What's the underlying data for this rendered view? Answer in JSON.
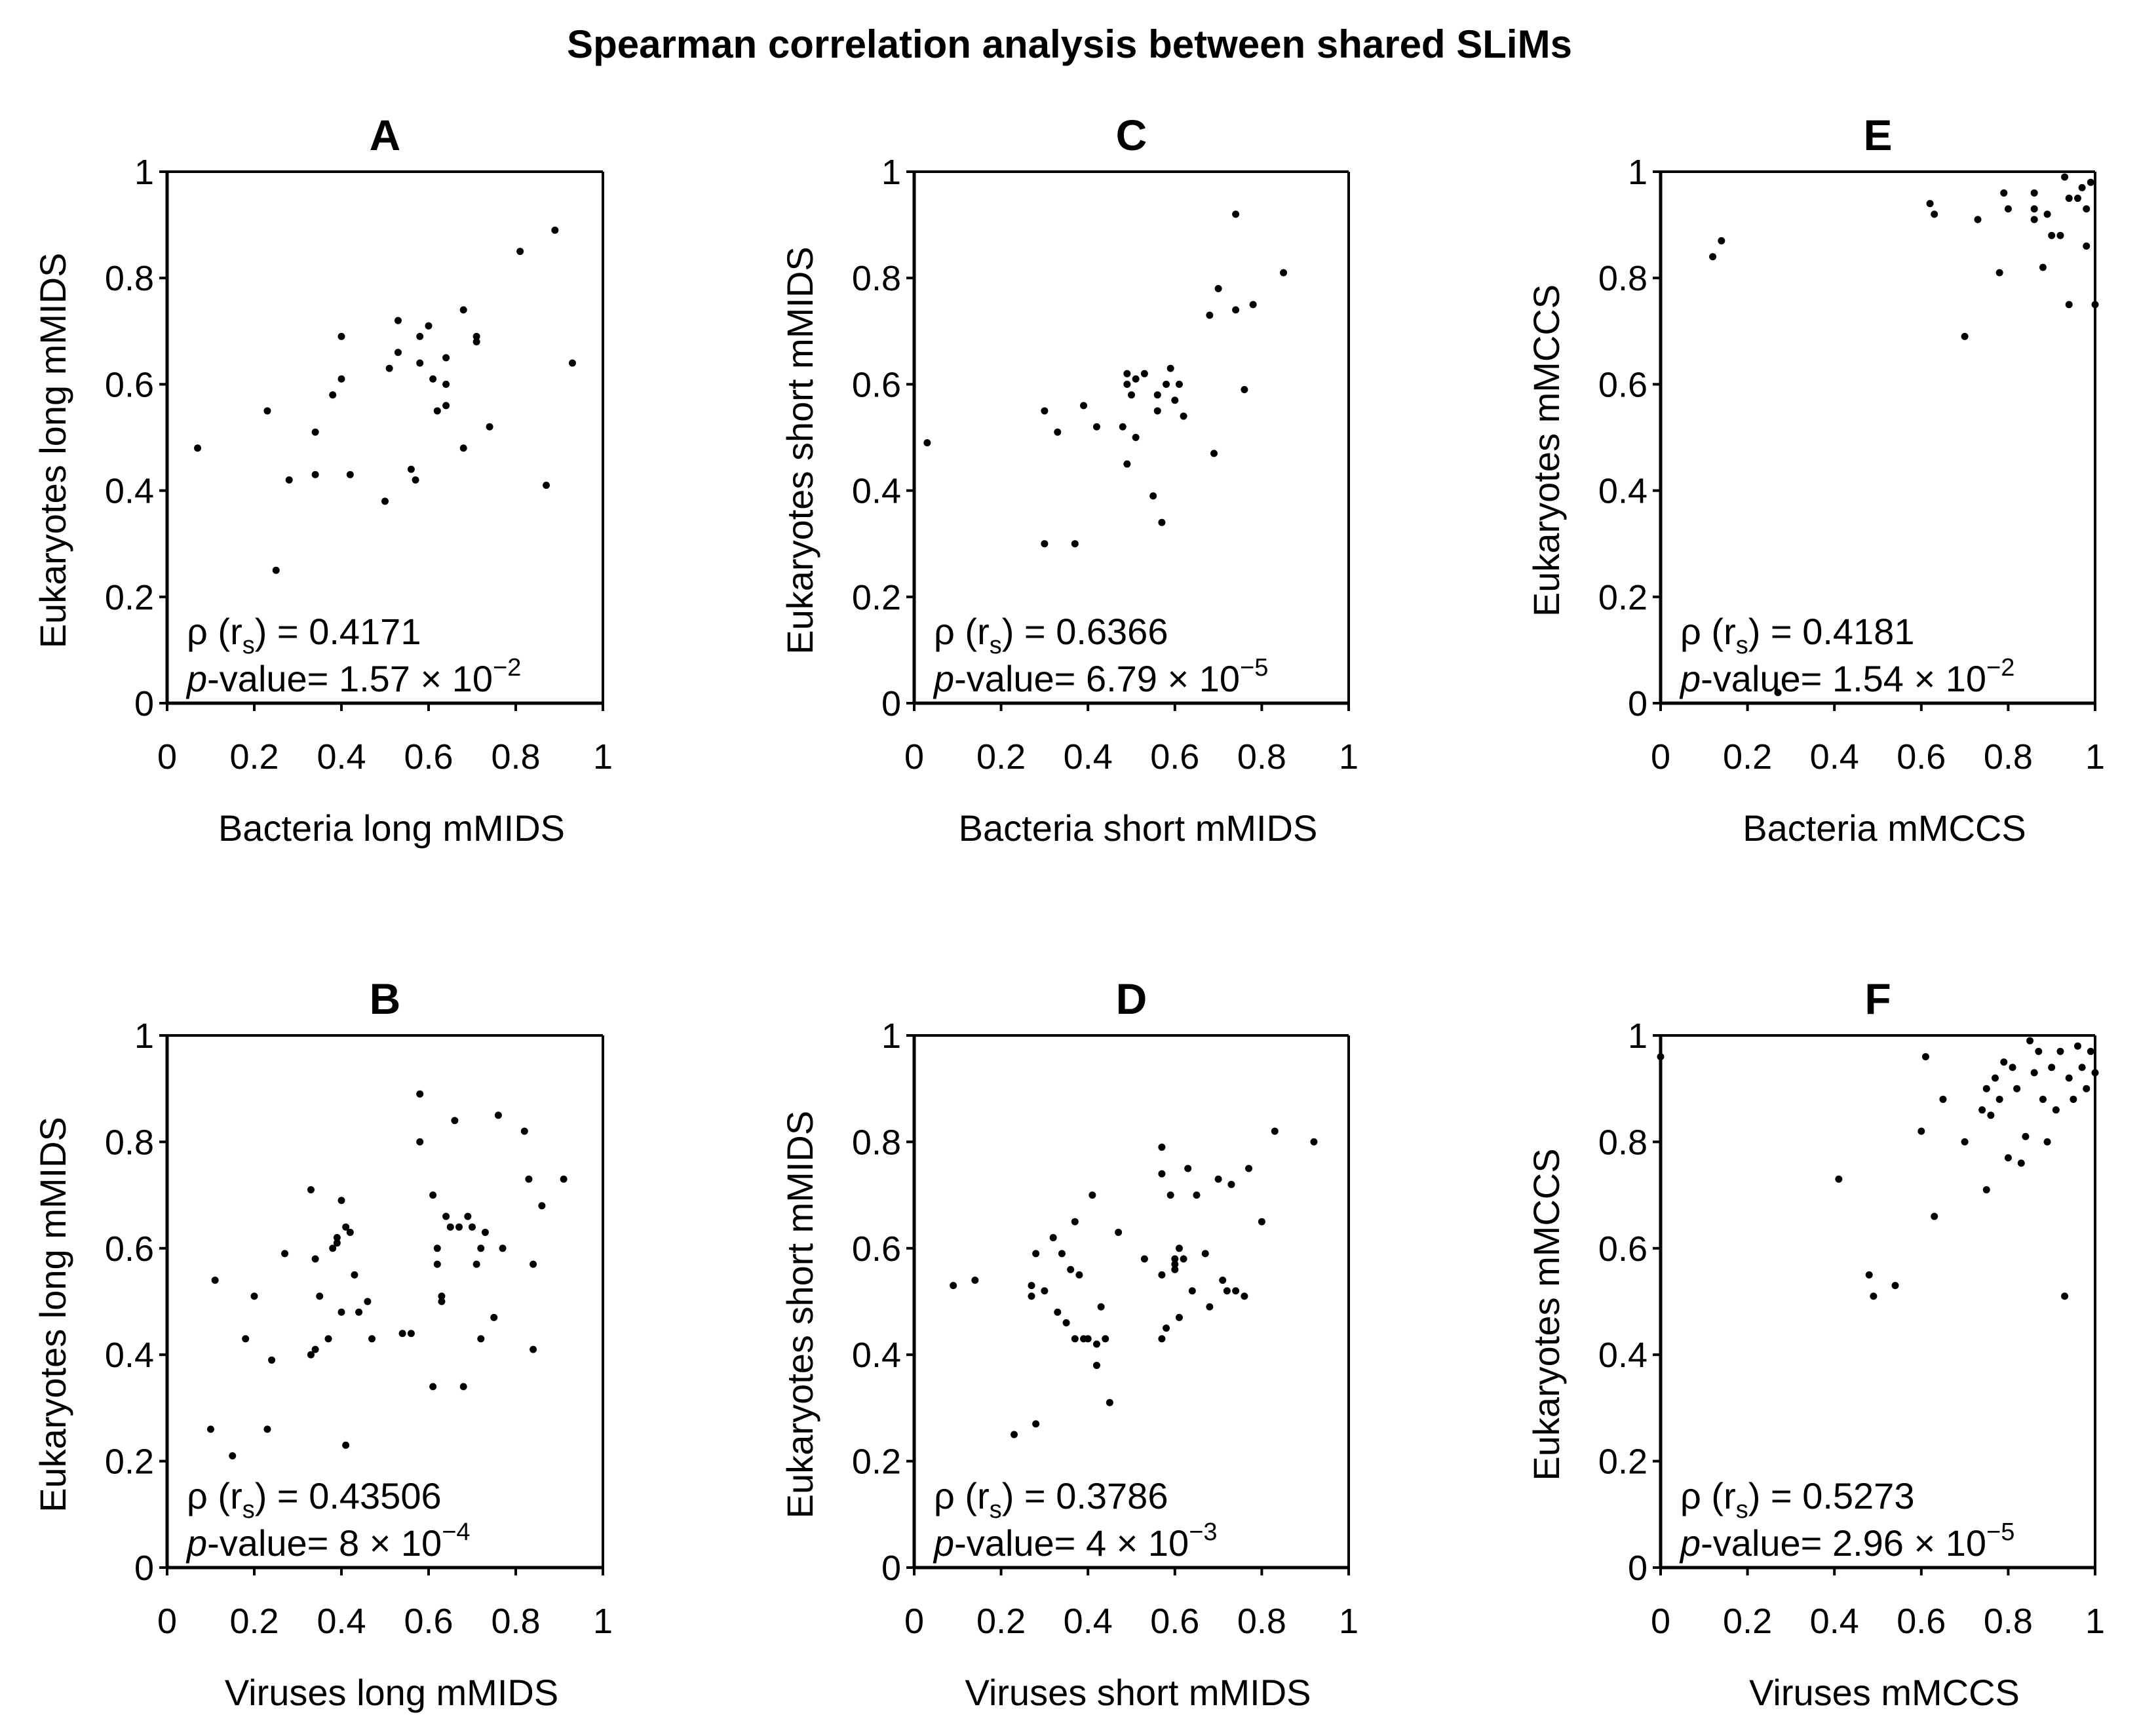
{
  "figure": {
    "title": "Spearman correlation analysis between shared SLiMs"
  },
  "chart_data": [
    {
      "panel": "A",
      "type": "scatter",
      "xlabel": "Bacteria long mMIDS",
      "ylabel": "Eukaryotes long mMIDS",
      "xlim": [
        0,
        1
      ],
      "ylim": [
        0,
        1
      ],
      "x_ticks": [
        "0",
        "0.2",
        "0.4",
        "0.6",
        "0.8",
        "1"
      ],
      "y_ticks": [
        "0",
        "0.2",
        "0.4",
        "0.6",
        "0.8",
        "1"
      ],
      "stat_rho_prefix": "ρ (r",
      "stat_rho_sub": "s",
      "stat_rho_value": ") = 0.4171",
      "stat_p_italic": "p",
      "stat_p_text": "-value= 1.57 × 10",
      "stat_p_exp": "−2",
      "points": [
        [
          0.07,
          0.48
        ],
        [
          0.23,
          0.55
        ],
        [
          0.25,
          0.25
        ],
        [
          0.28,
          0.42
        ],
        [
          0.34,
          0.43
        ],
        [
          0.34,
          0.51
        ],
        [
          0.38,
          0.58
        ],
        [
          0.4,
          0.69
        ],
        [
          0.4,
          0.61
        ],
        [
          0.42,
          0.43
        ],
        [
          0.5,
          0.38
        ],
        [
          0.51,
          0.63
        ],
        [
          0.53,
          0.72
        ],
        [
          0.53,
          0.66
        ],
        [
          0.56,
          0.44
        ],
        [
          0.57,
          0.42
        ],
        [
          0.58,
          0.64
        ],
        [
          0.58,
          0.69
        ],
        [
          0.6,
          0.71
        ],
        [
          0.61,
          0.61
        ],
        [
          0.62,
          0.55
        ],
        [
          0.64,
          0.65
        ],
        [
          0.64,
          0.56
        ],
        [
          0.64,
          0.6
        ],
        [
          0.68,
          0.74
        ],
        [
          0.68,
          0.48
        ],
        [
          0.71,
          0.68
        ],
        [
          0.71,
          0.69
        ],
        [
          0.74,
          0.52
        ],
        [
          0.81,
          0.85
        ],
        [
          0.87,
          0.41
        ],
        [
          0.89,
          0.89
        ],
        [
          0.93,
          0.64
        ]
      ]
    },
    {
      "panel": "B",
      "type": "scatter",
      "xlabel": "Viruses long mMIDS",
      "ylabel": "Eukaryotes long mMIDS",
      "xlim": [
        0,
        1
      ],
      "ylim": [
        0,
        1
      ],
      "x_ticks": [
        "0",
        "0.2",
        "0.4",
        "0.6",
        "0.8",
        "1"
      ],
      "y_ticks": [
        "0",
        "0.2",
        "0.4",
        "0.6",
        "0.8",
        "1"
      ],
      "stat_rho_prefix": "ρ (r",
      "stat_rho_sub": "s",
      "stat_rho_value": ") = 0.43506",
      "stat_p_italic": "p",
      "stat_p_text": "-value= 8 × 10",
      "stat_p_exp": "−4",
      "points": [
        [
          0.1,
          0.26
        ],
        [
          0.11,
          0.54
        ],
        [
          0.15,
          0.21
        ],
        [
          0.18,
          0.43
        ],
        [
          0.2,
          0.51
        ],
        [
          0.23,
          0.26
        ],
        [
          0.24,
          0.39
        ],
        [
          0.27,
          0.59
        ],
        [
          0.33,
          0.71
        ],
        [
          0.33,
          0.4
        ],
        [
          0.34,
          0.41
        ],
        [
          0.34,
          0.58
        ],
        [
          0.35,
          0.51
        ],
        [
          0.37,
          0.43
        ],
        [
          0.38,
          0.6
        ],
        [
          0.39,
          0.61
        ],
        [
          0.39,
          0.62
        ],
        [
          0.4,
          0.48
        ],
        [
          0.4,
          0.69
        ],
        [
          0.41,
          0.23
        ],
        [
          0.41,
          0.64
        ],
        [
          0.42,
          0.63
        ],
        [
          0.43,
          0.55
        ],
        [
          0.44,
          0.48
        ],
        [
          0.46,
          0.5
        ],
        [
          0.47,
          0.43
        ],
        [
          0.54,
          0.44
        ],
        [
          0.56,
          0.44
        ],
        [
          0.58,
          0.8
        ],
        [
          0.58,
          0.89
        ],
        [
          0.61,
          0.34
        ],
        [
          0.61,
          0.7
        ],
        [
          0.62,
          0.57
        ],
        [
          0.62,
          0.6
        ],
        [
          0.63,
          0.51
        ],
        [
          0.63,
          0.5
        ],
        [
          0.64,
          0.66
        ],
        [
          0.65,
          0.64
        ],
        [
          0.66,
          0.84
        ],
        [
          0.67,
          0.64
        ],
        [
          0.68,
          0.34
        ],
        [
          0.69,
          0.66
        ],
        [
          0.7,
          0.64
        ],
        [
          0.71,
          0.57
        ],
        [
          0.72,
          0.6
        ],
        [
          0.72,
          0.43
        ],
        [
          0.73,
          0.63
        ],
        [
          0.75,
          0.47
        ],
        [
          0.76,
          0.85
        ],
        [
          0.77,
          0.6
        ],
        [
          0.82,
          0.82
        ],
        [
          0.83,
          0.73
        ],
        [
          0.84,
          0.57
        ],
        [
          0.84,
          0.41
        ],
        [
          0.86,
          0.68
        ],
        [
          0.91,
          0.73
        ]
      ]
    },
    {
      "panel": "C",
      "type": "scatter",
      "xlabel": "Bacteria short mMIDS",
      "ylabel": "Eukaryotes short mMIDS",
      "xlim": [
        0,
        1
      ],
      "ylim": [
        0,
        1
      ],
      "x_ticks": [
        "0",
        "0.2",
        "0.4",
        "0.6",
        "0.8",
        "1"
      ],
      "y_ticks": [
        "0",
        "0.2",
        "0.4",
        "0.6",
        "0.8",
        "1"
      ],
      "stat_rho_prefix": "ρ (r",
      "stat_rho_sub": "s",
      "stat_rho_value": ") = 0.6366",
      "stat_p_italic": "p",
      "stat_p_text": "-value= 6.79 × 10",
      "stat_p_exp": "−5",
      "points": [
        [
          0.03,
          0.49
        ],
        [
          0.3,
          0.55
        ],
        [
          0.3,
          0.3
        ],
        [
          0.33,
          0.51
        ],
        [
          0.37,
          0.3
        ],
        [
          0.39,
          0.56
        ],
        [
          0.42,
          0.52
        ],
        [
          0.48,
          0.52
        ],
        [
          0.49,
          0.62
        ],
        [
          0.49,
          0.6
        ],
        [
          0.49,
          0.45
        ],
        [
          0.5,
          0.58
        ],
        [
          0.51,
          0.61
        ],
        [
          0.51,
          0.5
        ],
        [
          0.53,
          0.62
        ],
        [
          0.55,
          0.39
        ],
        [
          0.56,
          0.55
        ],
        [
          0.56,
          0.58
        ],
        [
          0.57,
          0.34
        ],
        [
          0.58,
          0.6
        ],
        [
          0.59,
          0.63
        ],
        [
          0.6,
          0.57
        ],
        [
          0.61,
          0.6
        ],
        [
          0.62,
          0.54
        ],
        [
          0.68,
          0.73
        ],
        [
          0.69,
          0.47
        ],
        [
          0.7,
          0.78
        ],
        [
          0.74,
          0.92
        ],
        [
          0.74,
          0.74
        ],
        [
          0.76,
          0.59
        ],
        [
          0.78,
          0.75
        ],
        [
          0.85,
          0.81
        ]
      ]
    },
    {
      "panel": "D",
      "type": "scatter",
      "xlabel": "Viruses short mMIDS",
      "ylabel": "Eukaryotes short mMIDS",
      "xlim": [
        0,
        1
      ],
      "ylim": [
        0,
        1
      ],
      "x_ticks": [
        "0",
        "0.2",
        "0.4",
        "0.6",
        "0.8",
        "1"
      ],
      "y_ticks": [
        "0",
        "0.2",
        "0.4",
        "0.6",
        "0.8",
        "1"
      ],
      "stat_rho_prefix": "ρ (r",
      "stat_rho_sub": "s",
      "stat_rho_value": ") = 0.3786",
      "stat_p_italic": "p",
      "stat_p_text": "-value= 4 × 10",
      "stat_p_exp": "−3",
      "points": [
        [
          0.09,
          0.53
        ],
        [
          0.14,
          0.54
        ],
        [
          0.23,
          0.25
        ],
        [
          0.27,
          0.53
        ],
        [
          0.27,
          0.51
        ],
        [
          0.28,
          0.59
        ],
        [
          0.28,
          0.27
        ],
        [
          0.3,
          0.52
        ],
        [
          0.32,
          0.62
        ],
        [
          0.33,
          0.48
        ],
        [
          0.34,
          0.59
        ],
        [
          0.35,
          0.46
        ],
        [
          0.36,
          0.56
        ],
        [
          0.37,
          0.65
        ],
        [
          0.37,
          0.43
        ],
        [
          0.38,
          0.55
        ],
        [
          0.39,
          0.43
        ],
        [
          0.4,
          0.43
        ],
        [
          0.41,
          0.7
        ],
        [
          0.42,
          0.42
        ],
        [
          0.42,
          0.38
        ],
        [
          0.43,
          0.49
        ],
        [
          0.44,
          0.43
        ],
        [
          0.45,
          0.31
        ],
        [
          0.47,
          0.63
        ],
        [
          0.53,
          0.58
        ],
        [
          0.57,
          0.79
        ],
        [
          0.57,
          0.74
        ],
        [
          0.57,
          0.55
        ],
        [
          0.57,
          0.43
        ],
        [
          0.58,
          0.45
        ],
        [
          0.59,
          0.7
        ],
        [
          0.6,
          0.57
        ],
        [
          0.6,
          0.58
        ],
        [
          0.6,
          0.56
        ],
        [
          0.61,
          0.47
        ],
        [
          0.61,
          0.6
        ],
        [
          0.62,
          0.58
        ],
        [
          0.63,
          0.75
        ],
        [
          0.64,
          0.52
        ],
        [
          0.65,
          0.7
        ],
        [
          0.67,
          0.59
        ],
        [
          0.68,
          0.49
        ],
        [
          0.7,
          0.73
        ],
        [
          0.71,
          0.54
        ],
        [
          0.72,
          0.52
        ],
        [
          0.73,
          0.72
        ],
        [
          0.74,
          0.52
        ],
        [
          0.76,
          0.51
        ],
        [
          0.77,
          0.75
        ],
        [
          0.8,
          0.65
        ],
        [
          0.83,
          0.82
        ],
        [
          0.92,
          0.8
        ]
      ]
    },
    {
      "panel": "E",
      "type": "scatter",
      "xlabel": "Bacteria mMCCS",
      "ylabel": "Eukaryotes  mMCCS",
      "xlim": [
        0,
        1
      ],
      "ylim": [
        0,
        1
      ],
      "x_ticks": [
        "0",
        "0.2",
        "0.4",
        "0.6",
        "0.8",
        "1"
      ],
      "y_ticks": [
        "0",
        "0.2",
        "0.4",
        "0.6",
        "0.8",
        "1"
      ],
      "stat_rho_prefix": "ρ (r",
      "stat_rho_sub": "s",
      "stat_rho_value": ") = 0.4181",
      "stat_p_italic": "p",
      "stat_p_text": "-value= 1.54 × 10",
      "stat_p_exp": "−2",
      "points": [
        [
          0.12,
          0.84
        ],
        [
          0.14,
          0.87
        ],
        [
          0.27,
          0.02
        ],
        [
          0.62,
          0.94
        ],
        [
          0.63,
          0.92
        ],
        [
          0.7,
          0.69
        ],
        [
          0.73,
          0.91
        ],
        [
          0.78,
          0.81
        ],
        [
          0.79,
          0.96
        ],
        [
          0.8,
          0.93
        ],
        [
          0.86,
          0.96
        ],
        [
          0.86,
          0.93
        ],
        [
          0.86,
          0.91
        ],
        [
          0.88,
          0.82
        ],
        [
          0.89,
          0.92
        ],
        [
          0.9,
          0.88
        ],
        [
          0.92,
          0.88
        ],
        [
          0.93,
          0.99
        ],
        [
          0.94,
          0.75
        ],
        [
          0.94,
          0.95
        ],
        [
          0.96,
          0.95
        ],
        [
          0.97,
          0.97
        ],
        [
          0.98,
          0.93
        ],
        [
          0.98,
          0.86
        ],
        [
          0.99,
          0.98
        ],
        [
          1.0,
          0.75
        ]
      ]
    },
    {
      "panel": "F",
      "type": "scatter",
      "xlabel": "Viruses mMCCS",
      "ylabel": "Eukaryotes  mMCCS",
      "xlim": [
        0,
        1
      ],
      "ylim": [
        0,
        1
      ],
      "x_ticks": [
        "0",
        "0.2",
        "0.4",
        "0.6",
        "0.8",
        "1"
      ],
      "y_ticks": [
        "0",
        "0.2",
        "0.4",
        "0.6",
        "0.8",
        "1"
      ],
      "stat_rho_prefix": "ρ (r",
      "stat_rho_sub": "s",
      "stat_rho_value": ") = 0.5273",
      "stat_p_italic": "p",
      "stat_p_text": "-value= 2.96 × 10",
      "stat_p_exp": "−5",
      "points": [
        [
          0.0,
          0.96
        ],
        [
          0.41,
          0.73
        ],
        [
          0.48,
          0.55
        ],
        [
          0.49,
          0.51
        ],
        [
          0.54,
          0.53
        ],
        [
          0.6,
          0.82
        ],
        [
          0.61,
          0.96
        ],
        [
          0.63,
          0.66
        ],
        [
          0.65,
          0.88
        ],
        [
          0.7,
          0.8
        ],
        [
          0.74,
          0.86
        ],
        [
          0.75,
          0.71
        ],
        [
          0.75,
          0.9
        ],
        [
          0.76,
          0.85
        ],
        [
          0.77,
          0.92
        ],
        [
          0.78,
          0.88
        ],
        [
          0.79,
          0.95
        ],
        [
          0.8,
          0.77
        ],
        [
          0.81,
          0.94
        ],
        [
          0.82,
          0.9
        ],
        [
          0.83,
          0.76
        ],
        [
          0.84,
          0.81
        ],
        [
          0.85,
          0.99
        ],
        [
          0.86,
          0.93
        ],
        [
          0.87,
          0.97
        ],
        [
          0.88,
          0.88
        ],
        [
          0.89,
          0.8
        ],
        [
          0.9,
          0.94
        ],
        [
          0.91,
          0.86
        ],
        [
          0.92,
          0.97
        ],
        [
          0.93,
          0.51
        ],
        [
          0.94,
          0.92
        ],
        [
          0.95,
          0.88
        ],
        [
          0.96,
          0.98
        ],
        [
          0.97,
          0.94
        ],
        [
          0.98,
          0.9
        ],
        [
          0.99,
          0.97
        ],
        [
          1.0,
          0.93
        ]
      ]
    }
  ]
}
